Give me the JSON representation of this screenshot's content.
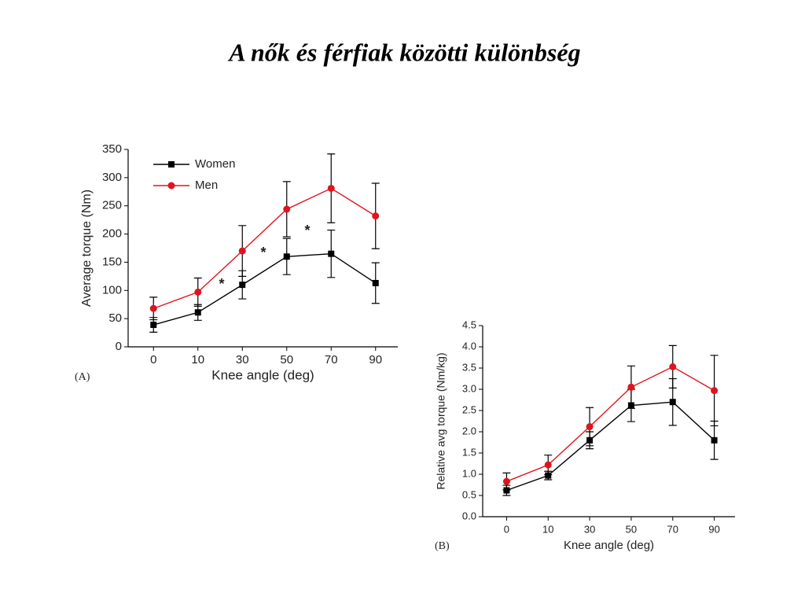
{
  "title": "A nők és férfiak közötti különbség",
  "chart_data": [
    {
      "type": "line",
      "panel_label": "(A)",
      "x_label": "Knee angle (deg)",
      "y_label": "Average torque (Nm)",
      "categories": [
        "0",
        "10",
        "30",
        "50",
        "70",
        "90"
      ],
      "ylim": [
        0,
        350
      ],
      "yticks": [
        0,
        50,
        100,
        150,
        200,
        250,
        300,
        350
      ],
      "legend": "upper left",
      "annotations": [
        "*",
        "*",
        "*"
      ],
      "series": [
        {
          "name": "Women",
          "color": "#000000",
          "marker": "square",
          "values": [
            39,
            61,
            110,
            160,
            165,
            113
          ],
          "errors": [
            13,
            14,
            25,
            32,
            42,
            36
          ]
        },
        {
          "name": "Men",
          "color": "#e0141e",
          "marker": "circle",
          "values": [
            68,
            97,
            170,
            244,
            281,
            232
          ],
          "errors": [
            20,
            25,
            45,
            49,
            61,
            58
          ]
        }
      ]
    },
    {
      "type": "line",
      "panel_label": "(B)",
      "x_label": "Knee angle (deg)",
      "y_label": "Relative avg torque (Nm/kg)",
      "categories": [
        "0",
        "10",
        "30",
        "50",
        "70",
        "90"
      ],
      "ylim": [
        0,
        4.5
      ],
      "yticks": [
        {
          "value": 0,
          "label": "0.0"
        },
        0.5,
        {
          "value": 1,
          "label": "1.0"
        },
        1.5,
        {
          "value": 2,
          "label": "2.0"
        },
        2.5,
        {
          "value": 3,
          "label": "3.0"
        },
        3.5,
        {
          "value": 4,
          "label": "4.0"
        },
        4.5
      ],
      "series": [
        {
          "name": "Women",
          "color": "#000000",
          "marker": "square",
          "values": [
            0.62,
            0.97,
            1.8,
            2.62,
            2.7,
            1.8
          ],
          "errors": [
            0.12,
            0.1,
            0.2,
            0.38,
            0.55,
            0.45
          ]
        },
        {
          "name": "Men",
          "color": "#e0141e",
          "marker": "circle",
          "values": [
            0.83,
            1.22,
            2.12,
            3.05,
            3.53,
            2.97
          ],
          "errors": [
            0.2,
            0.23,
            0.45,
            0.5,
            0.5,
            0.83
          ]
        }
      ]
    }
  ]
}
